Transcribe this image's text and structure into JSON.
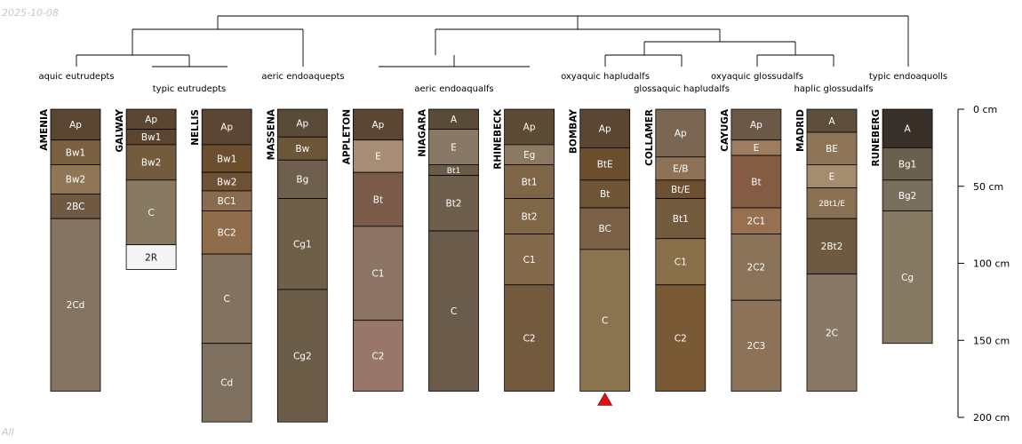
{
  "date_stamp": "2025-10-08",
  "corner_tag": "All",
  "chart_data": {
    "type": "soil-profile-sketches",
    "title": "",
    "depth_unit": "cm",
    "depth_axis": {
      "range": [
        0,
        200
      ],
      "ticks": [
        0,
        50,
        100,
        150,
        200
      ],
      "tick_labels": [
        "0 cm",
        "50 cm",
        "100 cm",
        "150 cm",
        "200 cm"
      ]
    },
    "profiles": [
      {
        "name": "AMENIA",
        "horizons": [
          {
            "name": "Ap",
            "top": 0,
            "bottom": 20,
            "color": "#5a4632"
          },
          {
            "name": "Bw1",
            "top": 20,
            "bottom": 36,
            "color": "#7a6040"
          },
          {
            "name": "Bw2",
            "top": 36,
            "bottom": 55,
            "color": "#8f7656"
          },
          {
            "name": "2BC",
            "top": 55,
            "bottom": 71,
            "color": "#6f5942"
          },
          {
            "name": "2Cd",
            "top": 71,
            "bottom": 183,
            "color": "#857361"
          }
        ]
      },
      {
        "name": "GALWAY",
        "horizons": [
          {
            "name": "Ap",
            "top": 0,
            "bottom": 13,
            "color": "#5b4632"
          },
          {
            "name": "Bw1",
            "top": 13,
            "bottom": 23,
            "color": "#5c4530"
          },
          {
            "name": "Bw2",
            "top": 23,
            "bottom": 46,
            "color": "#735b3e"
          },
          {
            "name": "C",
            "top": 46,
            "bottom": 88,
            "color": "#887a62"
          },
          {
            "name": "2R",
            "top": 88,
            "bottom": 104,
            "color": "#f5f5f5"
          }
        ]
      },
      {
        "name": "NELLIS",
        "horizons": [
          {
            "name": "Ap",
            "top": 0,
            "bottom": 23,
            "color": "#5a4632"
          },
          {
            "name": "Bw1",
            "top": 23,
            "bottom": 41,
            "color": "#6b4e2d"
          },
          {
            "name": "Bw2",
            "top": 41,
            "bottom": 53,
            "color": "#6f5236"
          },
          {
            "name": "BC1",
            "top": 53,
            "bottom": 66,
            "color": "#8a6b4d"
          },
          {
            "name": "BC2",
            "top": 66,
            "bottom": 94,
            "color": "#8e6c4c"
          },
          {
            "name": "C",
            "top": 94,
            "bottom": 152,
            "color": "#847260"
          },
          {
            "name": "Cd",
            "top": 152,
            "bottom": 203,
            "color": "#807060"
          }
        ]
      },
      {
        "name": "MASSENA",
        "horizons": [
          {
            "name": "Ap",
            "top": 0,
            "bottom": 18,
            "color": "#5a4a38"
          },
          {
            "name": "Bw",
            "top": 18,
            "bottom": 33,
            "color": "#6b5638"
          },
          {
            "name": "Bg",
            "top": 33,
            "bottom": 58,
            "color": "#6e604d"
          },
          {
            "name": "Cg1",
            "top": 58,
            "bottom": 117,
            "color": "#6f5f48"
          },
          {
            "name": "Cg2",
            "top": 117,
            "bottom": 203,
            "color": "#6b5d47"
          }
        ]
      },
      {
        "name": "APPLETON",
        "horizons": [
          {
            "name": "Ap",
            "top": 0,
            "bottom": 20,
            "color": "#5a4632"
          },
          {
            "name": "E",
            "top": 20,
            "bottom": 41,
            "color": "#a88d76"
          },
          {
            "name": "Bt",
            "top": 41,
            "bottom": 76,
            "color": "#7a5a48"
          },
          {
            "name": "C1",
            "top": 76,
            "bottom": 137,
            "color": "#8b7464"
          },
          {
            "name": "C2",
            "top": 137,
            "bottom": 183,
            "color": "#98766a"
          }
        ]
      },
      {
        "name": "NIAGARA",
        "horizons": [
          {
            "name": "A",
            "top": 0,
            "bottom": 13,
            "color": "#5a4a38"
          },
          {
            "name": "E",
            "top": 13,
            "bottom": 36,
            "color": "#8a7866"
          },
          {
            "name": "Bt1",
            "top": 36,
            "bottom": 43,
            "color": "#6a5a48"
          },
          {
            "name": "Bt2",
            "top": 43,
            "bottom": 79,
            "color": "#6e5e4c"
          },
          {
            "name": "C",
            "top": 79,
            "bottom": 183,
            "color": "#6b5b4a"
          }
        ]
      },
      {
        "name": "RHINEBECK",
        "horizons": [
          {
            "name": "Ap",
            "top": 0,
            "bottom": 23,
            "color": "#5e4b36"
          },
          {
            "name": "Eg",
            "top": 23,
            "bottom": 36,
            "color": "#8d7862"
          },
          {
            "name": "Bt1",
            "top": 36,
            "bottom": 58,
            "color": "#7e6547"
          },
          {
            "name": "Bt2",
            "top": 58,
            "bottom": 81,
            "color": "#7f6748"
          },
          {
            "name": "C1",
            "top": 81,
            "bottom": 114,
            "color": "#85694c"
          },
          {
            "name": "C2",
            "top": 114,
            "bottom": 183,
            "color": "#735a3f"
          }
        ]
      },
      {
        "name": "BOMBAY",
        "horizons": [
          {
            "name": "Ap",
            "top": 0,
            "bottom": 25,
            "color": "#5a4632"
          },
          {
            "name": "BtE",
            "top": 25,
            "bottom": 46,
            "color": "#6b4e2d"
          },
          {
            "name": "Bt",
            "top": 46,
            "bottom": 64,
            "color": "#6f5536"
          },
          {
            "name": "BC",
            "top": 64,
            "bottom": 91,
            "color": "#7a6047"
          },
          {
            "name": "C",
            "top": 91,
            "bottom": 183,
            "color": "#8a7450"
          }
        ]
      },
      {
        "name": "COLLAMER",
        "horizons": [
          {
            "name": "Ap",
            "top": 0,
            "bottom": 31,
            "color": "#7a6652"
          },
          {
            "name": "E/B",
            "top": 31,
            "bottom": 46,
            "color": "#8d7258"
          },
          {
            "name": "Bt/E",
            "top": 46,
            "bottom": 58,
            "color": "#6e4e30"
          },
          {
            "name": "Bt1",
            "top": 58,
            "bottom": 84,
            "color": "#735b3e"
          },
          {
            "name": "C1",
            "top": 84,
            "bottom": 114,
            "color": "#8a7048"
          },
          {
            "name": "C2",
            "top": 114,
            "bottom": 183,
            "color": "#7a5a35"
          }
        ]
      },
      {
        "name": "CAYUGA",
        "horizons": [
          {
            "name": "Ap",
            "top": 0,
            "bottom": 20,
            "color": "#6b5a48"
          },
          {
            "name": "E",
            "top": 20,
            "bottom": 30,
            "color": "#9c7d60"
          },
          {
            "name": "Bt",
            "top": 30,
            "bottom": 64,
            "color": "#845c44"
          },
          {
            "name": "2C1",
            "top": 64,
            "bottom": 81,
            "color": "#96704f"
          },
          {
            "name": "2C2",
            "top": 81,
            "bottom": 124,
            "color": "#8a7258"
          },
          {
            "name": "2C3",
            "top": 124,
            "bottom": 183,
            "color": "#8b7258"
          }
        ]
      },
      {
        "name": "MADRID",
        "horizons": [
          {
            "name": "A",
            "top": 0,
            "bottom": 15,
            "color": "#5e4e3c"
          },
          {
            "name": "BE",
            "top": 15,
            "bottom": 36,
            "color": "#8f7558"
          },
          {
            "name": "E",
            "top": 36,
            "bottom": 51,
            "color": "#a48c6e"
          },
          {
            "name": "2Bt1/E",
            "top": 51,
            "bottom": 71,
            "color": "#8a7052"
          },
          {
            "name": "2Bt2",
            "top": 71,
            "bottom": 107,
            "color": "#6e5a40"
          },
          {
            "name": "2C",
            "top": 107,
            "bottom": 183,
            "color": "#8a7866"
          }
        ]
      },
      {
        "name": "RUNEBERG",
        "horizons": [
          {
            "name": "A",
            "top": 0,
            "bottom": 25,
            "color": "#3a302a"
          },
          {
            "name": "Bg1",
            "top": 25,
            "bottom": 46,
            "color": "#6b604e"
          },
          {
            "name": "Bg2",
            "top": 46,
            "bottom": 66,
            "color": "#7a6e5e"
          },
          {
            "name": "Cg",
            "top": 66,
            "bottom": 152,
            "color": "#877a64"
          }
        ]
      }
    ],
    "dendrogram_labels": [
      "aquic eutrudepts",
      "typic eutrudepts",
      "aeric endoaquepts",
      "aeric endoaqualfs",
      "oxyaquic hapludalfs",
      "glossaquic hapludalfs",
      "oxyaquic glossudalfs",
      "haplic glossudalfs",
      "typic endoaquolls"
    ],
    "marker": {
      "profile": "BOMBAY",
      "shape": "triangle",
      "color": "#e01010"
    }
  }
}
